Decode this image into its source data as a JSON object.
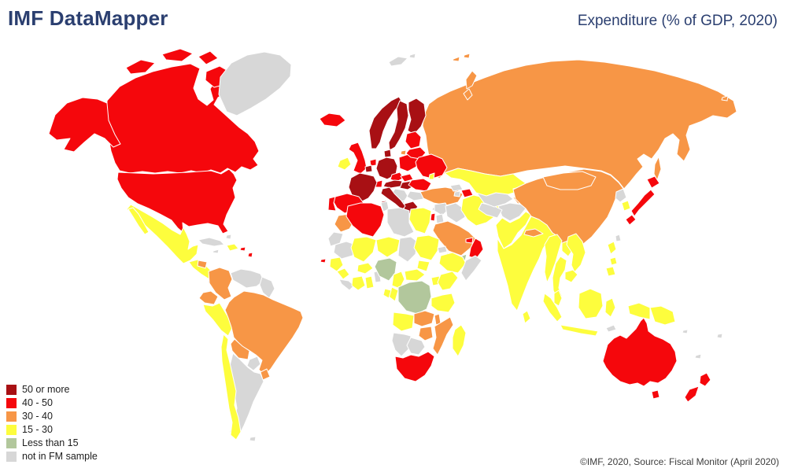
{
  "header": {
    "title": "IMF DataMapper",
    "indicator": "Expenditure (% of GDP, 2020)"
  },
  "footer": {
    "attribution": "©IMF, 2020, Source: Fiscal Monitor (April 2020)"
  },
  "legend": {
    "items": [
      {
        "key": "50+",
        "label": "50 or more",
        "color": "#a81014"
      },
      {
        "key": "40-50",
        "label": "40 - 50",
        "color": "#f5070c"
      },
      {
        "key": "30-40",
        "label": "30 - 40",
        "color": "#f79646"
      },
      {
        "key": "15-30",
        "label": "15 - 30",
        "color": "#fdfd3d"
      },
      {
        "key": "<15",
        "label": "Less than 15",
        "color": "#b2c79c"
      },
      {
        "key": "na",
        "label": "not in FM sample",
        "color": "#d7d7d7"
      }
    ]
  },
  "map": {
    "ocean_color": "#ffffff",
    "border_color": "#ffffff",
    "countries": [
      {
        "name": "Russia",
        "cat": "30-40"
      },
      {
        "name": "Canada",
        "cat": "40-50"
      },
      {
        "name": "United States",
        "cat": "40-50"
      },
      {
        "name": "Greenland",
        "cat": "na"
      },
      {
        "name": "Mexico",
        "cat": "15-30"
      },
      {
        "name": "Central America",
        "cat": "15-30"
      },
      {
        "name": "Honduras",
        "cat": "30-40"
      },
      {
        "name": "Costa Rica & Panama",
        "cat": "na"
      },
      {
        "name": "Cuba",
        "cat": "na"
      },
      {
        "name": "Dominican Republic",
        "cat": "15-30"
      },
      {
        "name": "Jamaica",
        "cat": "na"
      },
      {
        "name": "Bahamas",
        "cat": "na"
      },
      {
        "name": "Puerto Rico",
        "cat": "40-50"
      },
      {
        "name": "Lesser Antilles",
        "cat": "40-50"
      },
      {
        "name": "Cabo Verde",
        "cat": "40-50"
      },
      {
        "name": "Colombia",
        "cat": "30-40"
      },
      {
        "name": "Venezuela",
        "cat": "na"
      },
      {
        "name": "Guyana & Suriname",
        "cat": "na"
      },
      {
        "name": "Ecuador",
        "cat": "30-40"
      },
      {
        "name": "Peru",
        "cat": "15-30"
      },
      {
        "name": "Brazil",
        "cat": "30-40"
      },
      {
        "name": "Bolivia",
        "cat": "30-40"
      },
      {
        "name": "Paraguay",
        "cat": "na"
      },
      {
        "name": "Uruguay",
        "cat": "30-40"
      },
      {
        "name": "Argentina",
        "cat": "na"
      },
      {
        "name": "Chile",
        "cat": "15-30"
      },
      {
        "name": "Falkland Islands",
        "cat": "na"
      },
      {
        "name": "Iceland",
        "cat": "40-50"
      },
      {
        "name": "Norway",
        "cat": "50+"
      },
      {
        "name": "Sweden",
        "cat": "50+"
      },
      {
        "name": "Finland",
        "cat": "50+"
      },
      {
        "name": "Denmark",
        "cat": "50+"
      },
      {
        "name": "Baltic states",
        "cat": "40-50"
      },
      {
        "name": "United Kingdom",
        "cat": "40-50"
      },
      {
        "name": "Ireland",
        "cat": "15-30"
      },
      {
        "name": "Netherlands",
        "cat": "40-50"
      },
      {
        "name": "Belgium",
        "cat": "50+"
      },
      {
        "name": "Germany",
        "cat": "50+"
      },
      {
        "name": "Poland",
        "cat": "40-50"
      },
      {
        "name": "Czech Republic",
        "cat": "40-50"
      },
      {
        "name": "Slovakia",
        "cat": "40-50"
      },
      {
        "name": "Austria",
        "cat": "50+"
      },
      {
        "name": "Switzerland",
        "cat": "40-50"
      },
      {
        "name": "France",
        "cat": "50+"
      },
      {
        "name": "Hungary",
        "cat": "50+"
      },
      {
        "name": "Belarus",
        "cat": "40-50"
      },
      {
        "name": "Ukraine",
        "cat": "40-50"
      },
      {
        "name": "Romania",
        "cat": "40-50"
      },
      {
        "name": "Moldova",
        "cat": "15-30"
      },
      {
        "name": "Serbia & W. Balkans",
        "cat": "na"
      },
      {
        "name": "Bulgaria",
        "cat": "na"
      },
      {
        "name": "Albania",
        "cat": "na"
      },
      {
        "name": "Greece",
        "cat": "50+"
      },
      {
        "name": "Italy",
        "cat": "50+"
      },
      {
        "name": "Spain",
        "cat": "40-50"
      },
      {
        "name": "Portugal",
        "cat": "40-50"
      },
      {
        "name": "Svalbard",
        "cat": "na"
      },
      {
        "name": "Turkey",
        "cat": "30-40"
      },
      {
        "name": "Cyprus",
        "cat": "na"
      },
      {
        "name": "Georgia",
        "cat": "na"
      },
      {
        "name": "Armenia",
        "cat": "na"
      },
      {
        "name": "Azerbaijan",
        "cat": "40-50"
      },
      {
        "name": "Syria",
        "cat": "na"
      },
      {
        "name": "Iraq",
        "cat": "na"
      },
      {
        "name": "Israel",
        "cat": "40-50"
      },
      {
        "name": "Jordan",
        "cat": "na"
      },
      {
        "name": "Saudi Arabia",
        "cat": "30-40"
      },
      {
        "name": "Yemen",
        "cat": "<15"
      },
      {
        "name": "Oman",
        "cat": "40-50"
      },
      {
        "name": "United Arab Emirates",
        "cat": "40-50"
      },
      {
        "name": "Iran",
        "cat": "15-30"
      },
      {
        "name": "Afghanistan",
        "cat": "na"
      },
      {
        "name": "Pakistan",
        "cat": "15-30"
      },
      {
        "name": "Turkmenistan",
        "cat": "na"
      },
      {
        "name": "Uzbekistan",
        "cat": "na"
      },
      {
        "name": "Kazakhstan",
        "cat": "15-30"
      },
      {
        "name": "Kyrgyzstan",
        "cat": "15-30"
      },
      {
        "name": "Tajikistan",
        "cat": "30-40"
      },
      {
        "name": "India",
        "cat": "15-30"
      },
      {
        "name": "Nepal",
        "cat": "30-40"
      },
      {
        "name": "Bangladesh",
        "cat": "15-30"
      },
      {
        "name": "Sri Lanka",
        "cat": "15-30"
      },
      {
        "name": "China",
        "cat": "30-40"
      },
      {
        "name": "Mongolia",
        "cat": "30-40"
      },
      {
        "name": "Taiwan",
        "cat": "na"
      },
      {
        "name": "North Korea",
        "cat": "na"
      },
      {
        "name": "South Korea",
        "cat": "15-30"
      },
      {
        "name": "Japan",
        "cat": "40-50"
      },
      {
        "name": "Myanmar",
        "cat": "15-30"
      },
      {
        "name": "Thailand",
        "cat": "15-30"
      },
      {
        "name": "Laos",
        "cat": "15-30"
      },
      {
        "name": "Vietnam",
        "cat": "15-30"
      },
      {
        "name": "Cambodia",
        "cat": "15-30"
      },
      {
        "name": "Malaysia",
        "cat": "15-30"
      },
      {
        "name": "Philippines",
        "cat": "15-30"
      },
      {
        "name": "Indonesia",
        "cat": "15-30"
      },
      {
        "name": "Timor-Leste",
        "cat": "na"
      },
      {
        "name": "Papua New Guinea",
        "cat": "15-30"
      },
      {
        "name": "Morocco",
        "cat": "30-40"
      },
      {
        "name": "Western Sahara",
        "cat": "na"
      },
      {
        "name": "Algeria",
        "cat": "40-50"
      },
      {
        "name": "Tunisia",
        "cat": "na"
      },
      {
        "name": "Libya",
        "cat": "na"
      },
      {
        "name": "Egypt",
        "cat": "15-30"
      },
      {
        "name": "Mauritania",
        "cat": "na"
      },
      {
        "name": "Mali",
        "cat": "15-30"
      },
      {
        "name": "Niger",
        "cat": "15-30"
      },
      {
        "name": "Chad",
        "cat": "na"
      },
      {
        "name": "Sudan",
        "cat": "15-30"
      },
      {
        "name": "South Sudan",
        "cat": "15-30"
      },
      {
        "name": "Eritrea",
        "cat": "na"
      },
      {
        "name": "Ethiopia",
        "cat": "15-30"
      },
      {
        "name": "Somalia",
        "cat": "na"
      },
      {
        "name": "Senegal",
        "cat": "15-30"
      },
      {
        "name": "Guinea",
        "cat": "15-30"
      },
      {
        "name": "Sierra Leone & Liberia",
        "cat": "na"
      },
      {
        "name": "Côte d'Ivoire",
        "cat": "15-30"
      },
      {
        "name": "Ghana",
        "cat": "15-30"
      },
      {
        "name": "Burkina Faso",
        "cat": "15-30"
      },
      {
        "name": "Togo & Benin",
        "cat": "na"
      },
      {
        "name": "Nigeria",
        "cat": "<15"
      },
      {
        "name": "Cameroon",
        "cat": "15-30"
      },
      {
        "name": "Central African Republic",
        "cat": "15-30"
      },
      {
        "name": "Uganda",
        "cat": "15-30"
      },
      {
        "name": "Kenya",
        "cat": "15-30"
      },
      {
        "name": "DR Congo",
        "cat": "<15"
      },
      {
        "name": "Congo",
        "cat": "15-30"
      },
      {
        "name": "Gabon",
        "cat": "15-30"
      },
      {
        "name": "Tanzania",
        "cat": "15-30"
      },
      {
        "name": "Angola",
        "cat": "15-30"
      },
      {
        "name": "Zambia",
        "cat": "30-40"
      },
      {
        "name": "Malawi",
        "cat": "30-40"
      },
      {
        "name": "Mozambique",
        "cat": "30-40"
      },
      {
        "name": "Zimbabwe",
        "cat": "30-40"
      },
      {
        "name": "Namibia",
        "cat": "na"
      },
      {
        "name": "Botswana",
        "cat": "na"
      },
      {
        "name": "South Africa",
        "cat": "40-50"
      },
      {
        "name": "Madagascar",
        "cat": "15-30"
      },
      {
        "name": "Australia",
        "cat": "40-50"
      },
      {
        "name": "New Zealand",
        "cat": "40-50"
      },
      {
        "name": "Fiji",
        "cat": "na"
      },
      {
        "name": "New Caledonia",
        "cat": "na"
      },
      {
        "name": "Solomon Islands",
        "cat": "na"
      }
    ]
  }
}
